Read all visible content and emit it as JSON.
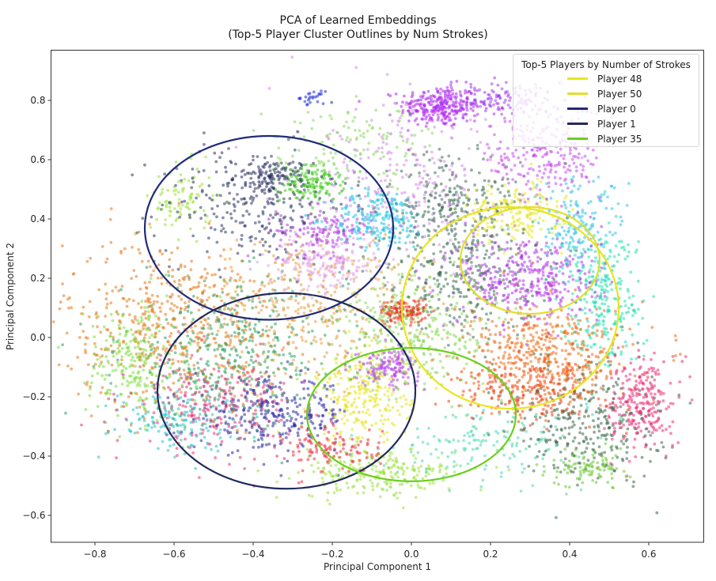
{
  "chart_data": {
    "type": "scatter",
    "title": "PCA of Learned Embeddings",
    "subtitle": "(Top-5 Player Cluster Outlines by Num Strokes)",
    "xlabel": "Principal Component 1",
    "ylabel": "Principal Component 2",
    "xlim": [
      -0.91,
      0.74
    ],
    "ylim": [
      -0.69,
      0.96
    ],
    "xticks": [
      -0.8,
      -0.6,
      -0.4,
      -0.2,
      0.0,
      0.2,
      0.4,
      0.6
    ],
    "xtick_labels": [
      "−0.8",
      "−0.6",
      "−0.4",
      "−0.2",
      "0.0",
      "0.2",
      "0.4",
      "0.6"
    ],
    "yticks": [
      0.8,
      0.6,
      0.4,
      0.2,
      0.0,
      -0.2,
      -0.4,
      -0.6
    ],
    "ytick_labels": [
      "0.8",
      "0.6",
      "0.4",
      "0.2",
      "0.0",
      "−0.2",
      "−0.4",
      "−0.6"
    ],
    "grid": false,
    "legend": {
      "title": "Top-5 Players by Number of Strokes",
      "position": "upper right",
      "entries": [
        {
          "label": "Player 48",
          "color": "#e8e61e"
        },
        {
          "label": "Player 50",
          "color": "#e2e02a"
        },
        {
          "label": "Player 0",
          "color": "#1f2a78"
        },
        {
          "label": "Player 1",
          "color": "#202a5e"
        },
        {
          "label": "Player 35",
          "color": "#6ccf1c"
        }
      ]
    },
    "ellipses": [
      {
        "player": "Player 48",
        "cx": 0.25,
        "cy": 0.1,
        "rx": 0.274,
        "ry": 0.34,
        "color": "#e8e61e"
      },
      {
        "player": "Player 50",
        "cx": 0.3,
        "cy": 0.26,
        "rx": 0.176,
        "ry": 0.18,
        "color": "#e2e02a"
      },
      {
        "player": "Player 0",
        "cx": -0.36,
        "cy": 0.37,
        "rx": 0.314,
        "ry": 0.31,
        "color": "#1f2a78"
      },
      {
        "player": "Player 1",
        "cx": -0.316,
        "cy": -0.18,
        "rx": 0.326,
        "ry": 0.33,
        "color": "#202a5e"
      },
      {
        "player": "Player 35",
        "cx": 0.0,
        "cy": -0.26,
        "rx": 0.264,
        "ry": 0.225,
        "color": "#6ccf1c"
      }
    ],
    "point_clusters": [
      {
        "cx": 0.07,
        "cy": 0.78,
        "sx": 0.05,
        "sy": 0.035,
        "n": 260,
        "color": "#b026f0"
      },
      {
        "cx": 0.22,
        "cy": 0.8,
        "sx": 0.08,
        "sy": 0.03,
        "n": 160,
        "color": "#a23ff0"
      },
      {
        "cx": -0.25,
        "cy": 0.81,
        "sx": 0.015,
        "sy": 0.01,
        "n": 25,
        "color": "#1d2fe0"
      },
      {
        "cx": -0.25,
        "cy": 0.52,
        "sx": 0.04,
        "sy": 0.03,
        "n": 140,
        "color": "#3fcc1a"
      },
      {
        "cx": -0.35,
        "cy": 0.54,
        "sx": 0.05,
        "sy": 0.03,
        "n": 120,
        "color": "#232a5c"
      },
      {
        "cx": -0.4,
        "cy": 0.45,
        "sx": 0.12,
        "sy": 0.1,
        "n": 260,
        "color": "#2c3460"
      },
      {
        "cx": -0.08,
        "cy": 0.4,
        "sx": 0.06,
        "sy": 0.05,
        "n": 200,
        "color": "#1ec6e6"
      },
      {
        "cx": -0.22,
        "cy": 0.36,
        "sx": 0.06,
        "sy": 0.04,
        "n": 140,
        "color": "#b43ce6"
      },
      {
        "cx": -0.22,
        "cy": 0.25,
        "sx": 0.07,
        "sy": 0.05,
        "n": 180,
        "color": "#e4a2e6"
      },
      {
        "cx": -0.58,
        "cy": 0.46,
        "sx": 0.04,
        "sy": 0.06,
        "n": 90,
        "color": "#9ae436"
      },
      {
        "cx": -0.02,
        "cy": 0.09,
        "sx": 0.03,
        "sy": 0.02,
        "n": 120,
        "color": "#ee2a10"
      },
      {
        "cx": -0.6,
        "cy": 0.05,
        "sx": 0.14,
        "sy": 0.14,
        "n": 500,
        "color": "#e8781a"
      },
      {
        "cx": -0.7,
        "cy": -0.08,
        "sx": 0.06,
        "sy": 0.1,
        "n": 240,
        "color": "#7ddc3a"
      },
      {
        "cx": -0.45,
        "cy": -0.05,
        "sx": 0.14,
        "sy": 0.12,
        "n": 400,
        "color": "#2ba060"
      },
      {
        "cx": -0.35,
        "cy": -0.26,
        "sx": 0.1,
        "sy": 0.06,
        "n": 300,
        "color": "#2a26a0"
      },
      {
        "cx": -0.5,
        "cy": -0.22,
        "sx": 0.1,
        "sy": 0.08,
        "n": 250,
        "color": "#e6346e"
      },
      {
        "cx": -0.6,
        "cy": -0.28,
        "sx": 0.08,
        "sy": 0.05,
        "n": 150,
        "color": "#28c4c8"
      },
      {
        "cx": -0.2,
        "cy": -0.38,
        "sx": 0.06,
        "sy": 0.04,
        "n": 120,
        "color": "#f02a3c"
      },
      {
        "cx": -0.12,
        "cy": -0.2,
        "sx": 0.06,
        "sy": 0.08,
        "n": 260,
        "color": "#e6e41a"
      },
      {
        "cx": -0.08,
        "cy": -0.46,
        "sx": 0.1,
        "sy": 0.04,
        "n": 240,
        "color": "#9ce240"
      },
      {
        "cx": -0.06,
        "cy": -0.1,
        "sx": 0.04,
        "sy": 0.03,
        "n": 140,
        "color": "#b440ee"
      },
      {
        "cx": 0.2,
        "cy": -0.35,
        "sx": 0.12,
        "sy": 0.06,
        "n": 150,
        "color": "#4ed8b0"
      },
      {
        "cx": 0.26,
        "cy": 0.42,
        "sx": 0.06,
        "sy": 0.05,
        "n": 180,
        "color": "#e8e822"
      },
      {
        "cx": 0.3,
        "cy": 0.2,
        "sx": 0.09,
        "sy": 0.08,
        "n": 380,
        "color": "#b436ea"
      },
      {
        "cx": 0.12,
        "cy": 0.22,
        "sx": 0.1,
        "sy": 0.1,
        "n": 300,
        "color": "#3a6e50"
      },
      {
        "cx": 0.48,
        "cy": 0.14,
        "sx": 0.05,
        "sy": 0.12,
        "n": 280,
        "color": "#22e2b0"
      },
      {
        "cx": 0.42,
        "cy": 0.38,
        "sx": 0.06,
        "sy": 0.08,
        "n": 160,
        "color": "#2ec4e8"
      },
      {
        "cx": 0.34,
        "cy": 0.62,
        "sx": 0.07,
        "sy": 0.08,
        "n": 240,
        "color": "#c648ec"
      },
      {
        "cx": 0.35,
        "cy": -0.05,
        "sx": 0.1,
        "sy": 0.08,
        "n": 420,
        "color": "#ee6a10"
      },
      {
        "cx": 0.3,
        "cy": -0.18,
        "sx": 0.09,
        "sy": 0.05,
        "n": 260,
        "color": "#f0420e"
      },
      {
        "cx": 0.58,
        "cy": -0.22,
        "sx": 0.04,
        "sy": 0.08,
        "n": 240,
        "color": "#ee2c74"
      },
      {
        "cx": 0.45,
        "cy": -0.28,
        "sx": 0.09,
        "sy": 0.1,
        "n": 300,
        "color": "#3a6648"
      },
      {
        "cx": 0.45,
        "cy": -0.44,
        "sx": 0.05,
        "sy": 0.03,
        "n": 100,
        "color": "#6cc830"
      },
      {
        "cx": 0.02,
        "cy": 0.02,
        "sx": 0.1,
        "sy": 0.1,
        "n": 320,
        "color": "#8ad858"
      },
      {
        "cx": -0.25,
        "cy": 0.1,
        "sx": 0.15,
        "sy": 0.12,
        "n": 360,
        "color": "#e3a040"
      },
      {
        "cx": 0.1,
        "cy": 0.45,
        "sx": 0.09,
        "sy": 0.08,
        "n": 240,
        "color": "#3e6e56"
      },
      {
        "cx": 0.0,
        "cy": 0.5,
        "sx": 0.14,
        "sy": 0.14,
        "n": 260,
        "color": "#d38ae8"
      },
      {
        "cx": -0.15,
        "cy": 0.65,
        "sx": 0.1,
        "sy": 0.06,
        "n": 120,
        "color": "#8cd860"
      }
    ]
  }
}
